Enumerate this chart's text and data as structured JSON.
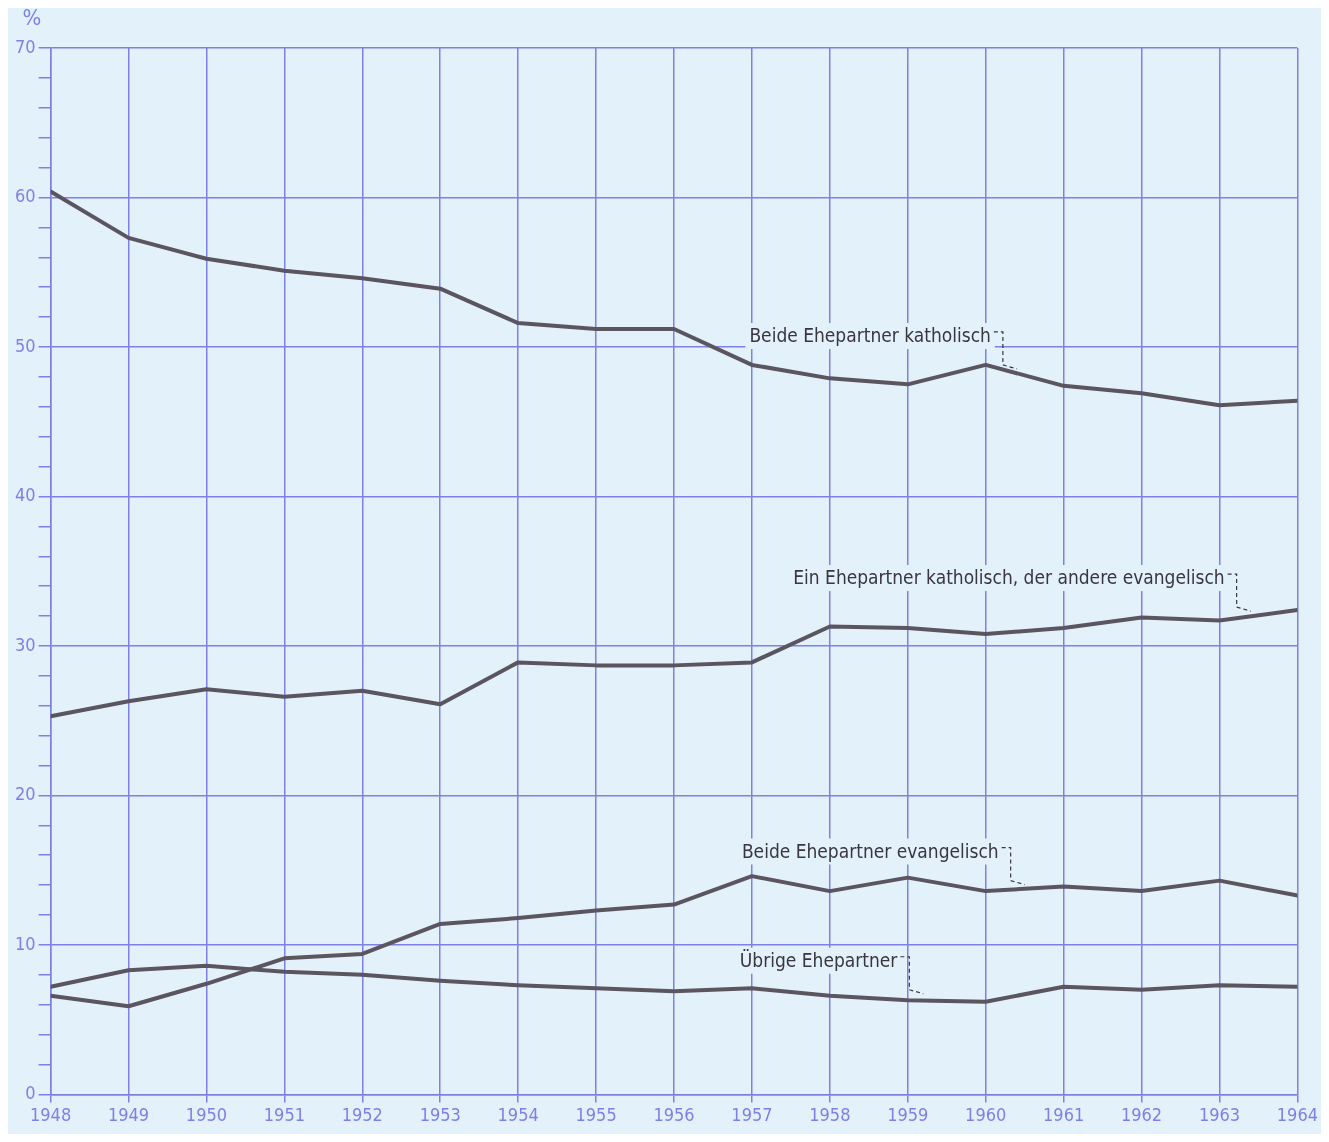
{
  "chart_data": {
    "type": "line",
    "ylabel": "%",
    "x": [
      1948,
      1949,
      1950,
      1951,
      1952,
      1953,
      1954,
      1955,
      1956,
      1957,
      1958,
      1959,
      1960,
      1961,
      1962,
      1963,
      1964
    ],
    "xlim": [
      1948,
      1964
    ],
    "xticks": [
      1948,
      1949,
      1950,
      1951,
      1952,
      1953,
      1954,
      1955,
      1956,
      1957,
      1958,
      1959,
      1960,
      1961,
      1962,
      1963,
      1964
    ],
    "ylim": [
      0,
      70
    ],
    "yticks": [
      0,
      {
        "value": 2,
        "label": null
      },
      {
        "value": 4,
        "label": null
      },
      {
        "value": 6,
        "label": null
      },
      {
        "value": 8,
        "label": null
      },
      10,
      {
        "value": 12,
        "label": null
      },
      {
        "value": 14,
        "label": null
      },
      {
        "value": 16,
        "label": null
      },
      {
        "value": 18,
        "label": null
      },
      20,
      {
        "value": 22,
        "label": null
      },
      {
        "value": 24,
        "label": null
      },
      {
        "value": 26,
        "label": null
      },
      {
        "value": 28,
        "label": null
      },
      30,
      {
        "value": 32,
        "label": null
      },
      {
        "value": 34,
        "label": null
      },
      {
        "value": 36,
        "label": null
      },
      {
        "value": 38,
        "label": null
      },
      40,
      {
        "value": 42,
        "label": null
      },
      {
        "value": 44,
        "label": null
      },
      {
        "value": 46,
        "label": null
      },
      {
        "value": 48,
        "label": null
      },
      50,
      {
        "value": 52,
        "label": null
      },
      {
        "value": 54,
        "label": null
      },
      {
        "value": 56,
        "label": null
      },
      {
        "value": 58,
        "label": null
      },
      60,
      {
        "value": 62,
        "label": null
      },
      {
        "value": 64,
        "label": null
      },
      {
        "value": 66,
        "label": null
      },
      {
        "value": 68,
        "label": null
      },
      70
    ],
    "grid": true,
    "legend": false,
    "marker": "none",
    "line_style": "solid",
    "series": [
      {
        "color": "#5b5560",
        "values": [
          60.4,
          57.3,
          55.9,
          55.1,
          54.6,
          53.9,
          51.6,
          51.2,
          51.2,
          48.8,
          47.9,
          47.5,
          48.8,
          47.4,
          46.9,
          46.1,
          46.4
        ]
      },
      {
        "color": "#5b5560",
        "values": [
          25.3,
          26.3,
          27.1,
          26.6,
          27.0,
          26.1,
          28.9,
          28.7,
          28.7,
          28.9,
          31.3,
          31.2,
          30.8,
          31.2,
          31.9,
          31.7,
          32.4
        ]
      },
      {
        "color": "#5b5560",
        "values": [
          6.6,
          5.9,
          7.4,
          9.1,
          9.4,
          11.4,
          11.8,
          12.3,
          12.7,
          14.6,
          13.6,
          14.5,
          13.6,
          13.9,
          13.6,
          14.3,
          13.3
        ]
      },
      {
        "color": "#5b5560",
        "values": [
          7.2,
          8.3,
          8.6,
          8.2,
          8.0,
          7.6,
          7.3,
          7.1,
          6.9,
          7.1,
          6.6,
          6.3,
          6.2,
          7.2,
          7.0,
          7.3,
          7.2
        ]
      }
    ],
    "annotations": [
      {
        "text": "Beide Ehepartner katholisch",
        "x": 1960.4,
        "y": 48.4
      },
      {
        "text": "Ein Ehepartner katholisch, der andere evangelisch",
        "x": 1963.4,
        "y": 32.2
      },
      {
        "text": "Beide Ehepartner evangelisch",
        "x": 1960.5,
        "y": 13.9
      },
      {
        "text": "Übrige Ehepartner",
        "x": 1959.2,
        "y": 6.6
      }
    ]
  }
}
